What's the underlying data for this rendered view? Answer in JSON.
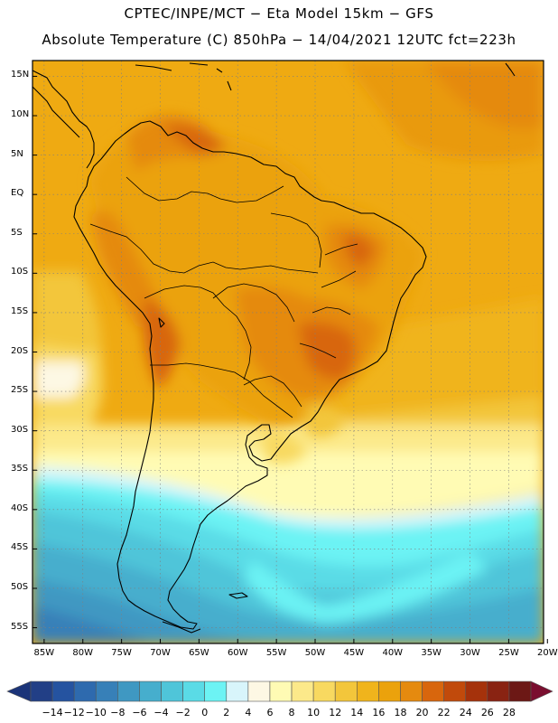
{
  "header": {
    "line1": "CPTEC/INPE/MCT −  Eta Model 15km − GFS",
    "line2": "Absolute Temperature (C) 850hPa − 14/04/2021 12UTC fct=223h"
  },
  "map": {
    "lat_labels": [
      "15N",
      "10N",
      "5N",
      "EQ",
      "5S",
      "10S",
      "15S",
      "20S",
      "25S",
      "30S",
      "35S",
      "40S",
      "45S",
      "50S",
      "55S"
    ],
    "lon_labels": [
      "85W",
      "80W",
      "75W",
      "70W",
      "65W",
      "60W",
      "55W",
      "50W",
      "45W",
      "40W",
      "35W",
      "30W",
      "25W",
      "20W"
    ],
    "lat_range": [
      17,
      -57
    ],
    "lon_range": [
      -86.5,
      -20.5
    ],
    "gridlines": true,
    "coastline_color": "#000000"
  },
  "colorbar": {
    "ticks": [
      "−14",
      "−12",
      "−10",
      "−8",
      "−6",
      "−4",
      "−2",
      "0",
      "2",
      "4",
      "6",
      "8",
      "10",
      "12",
      "14",
      "16",
      "18",
      "20",
      "22",
      "24",
      "26",
      "28"
    ],
    "colors": [
      "#223f86",
      "#2553a0",
      "#2e6aae",
      "#3780b8",
      "#3f98c2",
      "#46aecd",
      "#4fc5d9",
      "#5adbe6",
      "#6cf3f4",
      "#d8f5fb",
      "#fdf8e4",
      "#fffbb4",
      "#fce98a",
      "#f8d960",
      "#f3c63b",
      "#f0b41c",
      "#eba20c",
      "#e58a0f",
      "#d8660d",
      "#c14a0b",
      "#a5320b",
      "#892312",
      "#6c1815"
    ],
    "under_color": "#1b3479",
    "over_color": "#7a0e2f"
  }
}
